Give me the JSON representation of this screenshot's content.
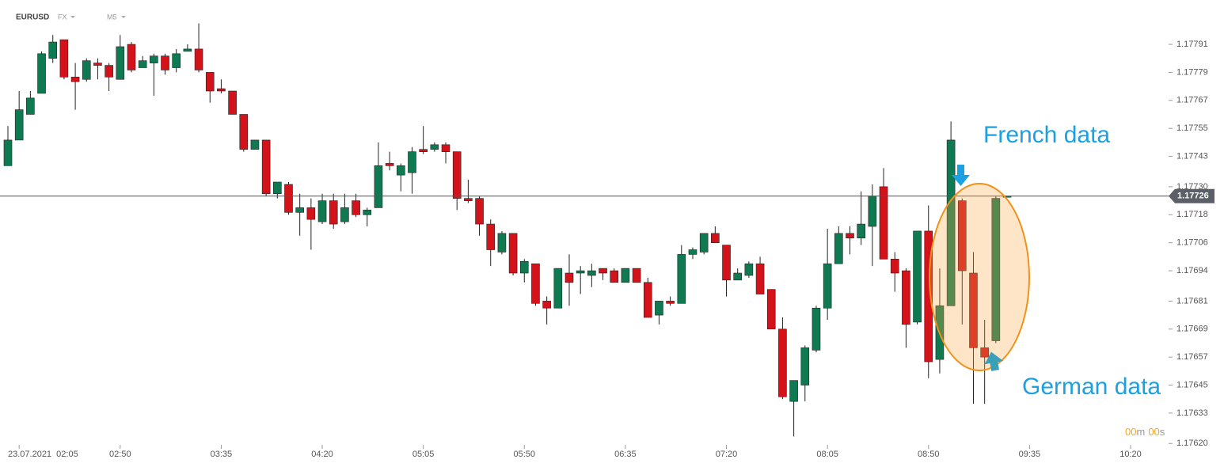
{
  "header": {
    "symbol": "EURUSD",
    "market": "FX",
    "interval": "M5"
  },
  "timer": [
    "00",
    "m",
    "00",
    "s"
  ],
  "annotations": [
    "French data",
    "German data"
  ],
  "chart_data": {
    "type": "candlestick",
    "up_color": "#0f7a52",
    "down_color": "#d3121a",
    "x": [
      "02:00",
      "02:05",
      "02:10",
      "02:15",
      "02:20",
      "02:25",
      "02:30",
      "02:35",
      "02:40",
      "02:45",
      "02:50",
      "02:55",
      "03:00",
      "03:05",
      "03:10",
      "03:15",
      "03:20",
      "03:25",
      "03:30",
      "03:35",
      "03:40",
      "03:45",
      "03:50",
      "03:55",
      "04:00",
      "04:05",
      "04:10",
      "04:15",
      "04:20",
      "04:25",
      "04:30",
      "04:35",
      "04:40",
      "04:45",
      "04:50",
      "04:55",
      "05:00",
      "05:05",
      "05:10",
      "05:15",
      "05:20",
      "05:25",
      "05:30",
      "05:35",
      "05:40",
      "05:45",
      "05:50",
      "05:55",
      "06:00",
      "06:05",
      "06:10",
      "06:15",
      "06:20",
      "06:25",
      "06:30",
      "06:35",
      "06:40",
      "06:45",
      "06:50",
      "06:55",
      "07:00",
      "07:05",
      "07:10",
      "07:15",
      "07:20",
      "07:25",
      "07:30",
      "07:35",
      "07:40",
      "07:45",
      "07:50",
      "07:55",
      "08:00",
      "08:05",
      "08:10",
      "08:15",
      "08:20",
      "08:25",
      "08:30",
      "08:35",
      "08:40",
      "08:45",
      "08:50",
      "08:55",
      "09:00",
      "09:05",
      "09:10",
      "09:15",
      "09:20",
      "09:25"
    ],
    "open": [
      1.17739,
      1.1775,
      1.17761,
      1.1777,
      1.17785,
      1.17793,
      1.17777,
      1.17776,
      1.17783,
      1.17782,
      1.17776,
      1.17791,
      1.17781,
      1.17783,
      1.17786,
      1.17781,
      1.17788,
      1.17789,
      1.17779,
      1.17772,
      1.17771,
      1.17761,
      1.17746,
      1.1775,
      1.17727,
      1.17731,
      1.17719,
      1.17721,
      1.17715,
      1.17724,
      1.17715,
      1.17724,
      1.17718,
      1.17721,
      1.1774,
      1.17735,
      1.17736,
      1.17746,
      1.17746,
      1.17748,
      1.17745,
      1.17725,
      1.17725,
      1.17714,
      1.17702,
      1.1771,
      1.17693,
      1.17697,
      1.17681,
      1.17678,
      1.17693,
      1.17693,
      1.17692,
      1.17695,
      1.17694,
      1.17689,
      1.17695,
      1.17689,
      1.17675,
      1.17681,
      1.1768,
      1.17701,
      1.17702,
      1.1771,
      1.17705,
      1.1769,
      1.17692,
      1.17697,
      1.17686,
      1.17669,
      1.17638,
      1.17645,
      1.1766,
      1.17678,
      1.17697,
      1.1771,
      1.17708,
      1.17713,
      1.1773,
      1.17699,
      1.17694,
      1.17672,
      1.17711,
      1.17656,
      1.17679,
      1.17724,
      1.17693,
      1.17661,
      1.17664,
      1.17726
    ],
    "high": [
      1.17756,
      1.17771,
      1.17771,
      1.17788,
      1.17795,
      1.17793,
      1.17783,
      1.17785,
      1.17785,
      1.17783,
      1.17795,
      1.17792,
      1.17786,
      1.17787,
      1.17787,
      1.17789,
      1.17791,
      1.178,
      1.17779,
      1.17776,
      1.17771,
      1.17761,
      1.1775,
      1.1775,
      1.17732,
      1.17732,
      1.17727,
      1.17725,
      1.17727,
      1.17727,
      1.17727,
      1.17727,
      1.17721,
      1.17749,
      1.17745,
      1.1774,
      1.17747,
      1.17756,
      1.17749,
      1.17749,
      1.17745,
      1.17733,
      1.17726,
      1.17716,
      1.17711,
      1.1771,
      1.17699,
      1.17697,
      1.17683,
      1.17695,
      1.17701,
      1.17696,
      1.17697,
      1.17695,
      1.17695,
      1.17695,
      1.17695,
      1.17691,
      1.17681,
      1.17683,
      1.17705,
      1.17704,
      1.1771,
      1.17713,
      1.17705,
      1.17695,
      1.17698,
      1.177,
      1.17686,
      1.17674,
      1.17647,
      1.17662,
      1.17679,
      1.17712,
      1.17713,
      1.17713,
      1.17728,
      1.17731,
      1.17738,
      1.17702,
      1.17695,
      1.17711,
      1.17722,
      1.17695,
      1.17758,
      1.17725,
      1.17702,
      1.17673,
      1.17726,
      1.17726
    ],
    "low": [
      1.17739,
      1.1775,
      1.17761,
      1.1777,
      1.17783,
      1.17776,
      1.17763,
      1.17775,
      1.17776,
      1.17771,
      1.17776,
      1.17779,
      1.17781,
      1.17769,
      1.17778,
      1.17779,
      1.17788,
      1.17779,
      1.17766,
      1.1777,
      1.17761,
      1.17745,
      1.17746,
      1.17726,
      1.17725,
      1.17718,
      1.17709,
      1.17703,
      1.17714,
      1.17712,
      1.17714,
      1.17717,
      1.17713,
      1.17721,
      1.17737,
      1.17728,
      1.17727,
      1.17744,
      1.17745,
      1.1774,
      1.1772,
      1.17723,
      1.17709,
      1.17696,
      1.17701,
      1.17692,
      1.17689,
      1.17679,
      1.17671,
      1.17678,
      1.17679,
      1.17684,
      1.17687,
      1.1769,
      1.17689,
      1.17689,
      1.17689,
      1.17674,
      1.17671,
      1.17679,
      1.1768,
      1.17699,
      1.17701,
      1.17706,
      1.17683,
      1.1769,
      1.17691,
      1.17684,
      1.17669,
      1.17639,
      1.17623,
      1.17638,
      1.17659,
      1.17673,
      1.17697,
      1.17701,
      1.17705,
      1.17696,
      1.17699,
      1.17685,
      1.17661,
      1.17671,
      1.17648,
      1.1765,
      1.17679,
      1.17671,
      1.17637,
      1.17637,
      1.17663,
      1.17726
    ],
    "close": [
      1.1775,
      1.17763,
      1.17768,
      1.17787,
      1.17792,
      1.17777,
      1.17775,
      1.17784,
      1.17782,
      1.17777,
      1.1779,
      1.1778,
      1.17784,
      1.17786,
      1.1778,
      1.17787,
      1.17789,
      1.1778,
      1.17771,
      1.17771,
      1.17761,
      1.17746,
      1.1775,
      1.17727,
      1.17732,
      1.17719,
      1.17721,
      1.17716,
      1.17724,
      1.17714,
      1.17721,
      1.17718,
      1.1772,
      1.17739,
      1.17739,
      1.17739,
      1.17745,
      1.17745,
      1.17748,
      1.17745,
      1.17725,
      1.17724,
      1.17714,
      1.17703,
      1.1771,
      1.17693,
      1.17698,
      1.1768,
      1.17678,
      1.17695,
      1.17689,
      1.17694,
      1.17694,
      1.17693,
      1.17689,
      1.17695,
      1.17689,
      1.17674,
      1.17681,
      1.1768,
      1.17701,
      1.17703,
      1.1771,
      1.17706,
      1.1769,
      1.17693,
      1.17697,
      1.17684,
      1.17669,
      1.1764,
      1.17647,
      1.17661,
      1.17678,
      1.17697,
      1.1771,
      1.17708,
      1.17714,
      1.17726,
      1.17699,
      1.17693,
      1.17671,
      1.17711,
      1.17655,
      1.17679,
      1.1775,
      1.17694,
      1.17661,
      1.17657,
      1.17725,
      1.17726
    ],
    "last_price": 1.17726,
    "ylim": [
      1.17615,
      1.1781
    ],
    "yticks": [
      1.17791,
      1.17779,
      1.17767,
      1.17755,
      1.17743,
      {
        "value": 1.1773,
        "label": "1.17730"
      },
      1.17718,
      1.17706,
      1.17694,
      1.17681,
      1.17669,
      1.17657,
      1.17645,
      1.17633,
      {
        "value": 1.1762,
        "label": "1.17620"
      }
    ],
    "xticks": [
      {
        "value": "02:05",
        "label": "23.07.2021  02:05"
      },
      "02:50",
      "03:35",
      "04:20",
      "05:05",
      "05:50",
      "06:35",
      "07:20",
      "08:05",
      "08:50",
      "09:35",
      "10:20"
    ]
  }
}
